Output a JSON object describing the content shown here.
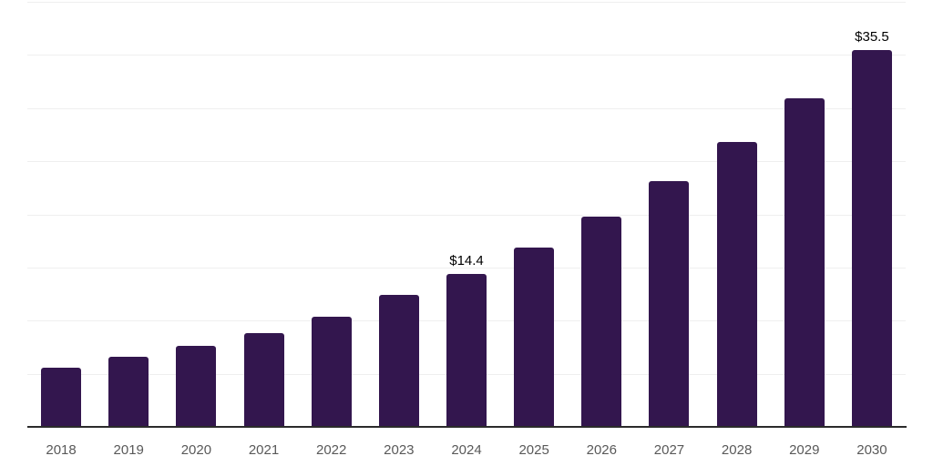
{
  "chart_data": {
    "type": "bar",
    "title": "",
    "xlabel": "",
    "ylabel": "",
    "categories": [
      "2018",
      "2019",
      "2020",
      "2021",
      "2022",
      "2023",
      "2024",
      "2025",
      "2026",
      "2027",
      "2028",
      "2029",
      "2030"
    ],
    "values": [
      5.6,
      6.6,
      7.6,
      8.8,
      10.4,
      12.4,
      14.4,
      16.9,
      19.8,
      23.1,
      26.8,
      30.9,
      35.5
    ],
    "value_labels": {
      "2024": "$14.4",
      "2030": "$35.5"
    },
    "ylim": [
      0,
      40
    ],
    "grid_step": 5,
    "grid": "horizontal",
    "y_tick_labels_visible": false,
    "legend": "none",
    "colors": {
      "bar": "#33164e",
      "axis_line": "#2b2b2b",
      "gridline": "#efefef",
      "tick_label": "#595959",
      "value_label": "#000000",
      "background": "#ffffff"
    }
  }
}
